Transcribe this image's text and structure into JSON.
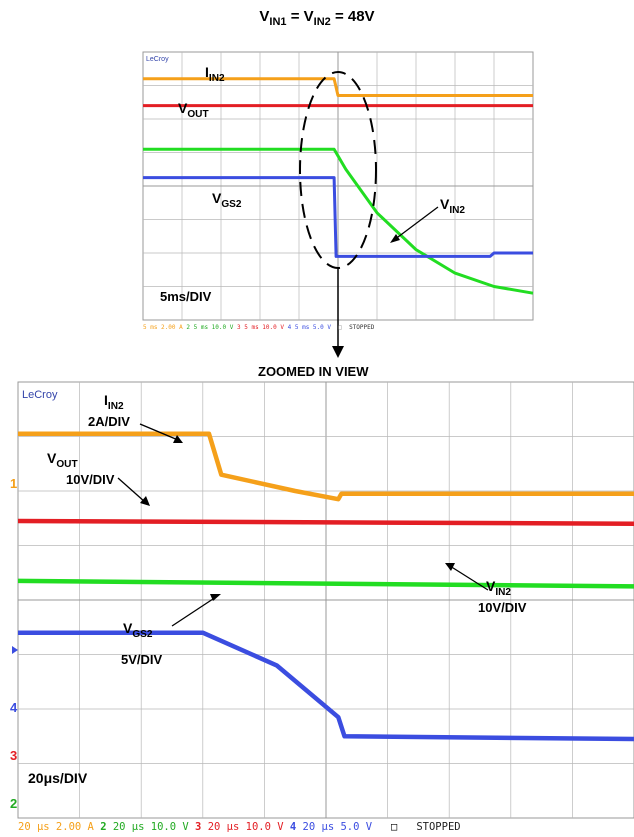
{
  "title": {
    "prefix": "V",
    "sub1": "IN1",
    "mid": " = V",
    "sub2": "IN2",
    "suffix": " = 48V"
  },
  "top_scope": {
    "brand": "LeCroy",
    "labels": {
      "iin2": {
        "main": "I",
        "sub": "IN2"
      },
      "vout": {
        "main": "V",
        "sub": "OUT"
      },
      "vgs2": {
        "main": "V",
        "sub": "GS2"
      },
      "vin2": {
        "main": "V",
        "sub": "IN2"
      }
    },
    "timebase": "5ms/DIV",
    "status": {
      "ch1": "5 ms 2.00 A",
      "ch2_num": "2",
      "ch2": "5 ms 10.0 V",
      "ch3_num": "3",
      "ch3": "5 ms 10.0 V",
      "ch4_num": "4",
      "ch4": "5 ms 5.0 V",
      "state": "STOPPED"
    }
  },
  "zoom_label": "ZOOMED IN VIEW",
  "bottom_scope": {
    "brand": "LeCroy",
    "labels": {
      "iin2": {
        "main": "I",
        "sub": "IN2",
        "scale": "2A/DIV"
      },
      "vout": {
        "main": "V",
        "sub": "OUT",
        "scale": "10V/DIV"
      },
      "vin2": {
        "main": "V",
        "sub": "IN2",
        "scale": "10V/DIV"
      },
      "vgs2": {
        "main": "V",
        "sub": "GS2",
        "scale": "5V/DIV"
      }
    },
    "timebase": "20μs/DIV",
    "status": {
      "ch1": "20 μs 2.00 A",
      "ch2_num": "2",
      "ch2": "20 μs 10.0 V",
      "ch3_num": "3",
      "ch3": "20 μs 10.0 V",
      "ch4_num": "4",
      "ch4": "20 μs 5.0 V",
      "state": "STOPPED"
    },
    "channel_markers": [
      "1",
      "4",
      "3",
      "2"
    ]
  },
  "colors": {
    "iin2": "#f5a01a",
    "vout": "#e31e24",
    "vin2": "#22dd22",
    "vgs2": "#3b4de0",
    "grid": "#b8b8b8"
  },
  "chart_data": [
    {
      "type": "line",
      "title": "",
      "xlabel": "",
      "ylabel": "",
      "grid": true,
      "series": [
        {
          "name": "I_IN2",
          "x": [
            0,
            4.9,
            5.0,
            10
          ],
          "y": [
            7.2,
            7.2,
            6.7,
            6.7
          ]
        },
        {
          "name": "V_OUT",
          "x": [
            0,
            10
          ],
          "y": [
            6.4,
            6.4
          ]
        },
        {
          "name": "V_IN2",
          "x": [
            0,
            4.9,
            5.2,
            6,
            7,
            8,
            9,
            10
          ],
          "y": [
            5.1,
            5.1,
            4.5,
            3.2,
            2.1,
            1.4,
            1.0,
            0.8
          ]
        },
        {
          "name": "V_GS2",
          "x": [
            0,
            4.9,
            4.95,
            8.9,
            9.0,
            10
          ],
          "y": [
            4.25,
            4.25,
            1.9,
            1.9,
            2.0,
            2.0
          ]
        }
      ]
    },
    {
      "type": "line",
      "title": "",
      "xlabel": "",
      "ylabel": "",
      "grid": true,
      "series": [
        {
          "name": "I_IN2",
          "x": [
            0,
            3.1,
            3.3,
            4.5,
            5.2,
            5.25,
            10
          ],
          "y": [
            7.05,
            7.05,
            6.3,
            6.0,
            5.85,
            5.95,
            5.95
          ]
        },
        {
          "name": "V_OUT",
          "x": [
            0,
            10
          ],
          "y": [
            5.45,
            5.4
          ]
        },
        {
          "name": "V_IN2",
          "x": [
            0,
            10
          ],
          "y": [
            4.35,
            4.25
          ]
        },
        {
          "name": "V_GS2",
          "x": [
            0,
            3.0,
            4.2,
            5.2,
            5.3,
            10
          ],
          "y": [
            3.4,
            3.4,
            2.8,
            1.85,
            1.5,
            1.45
          ]
        }
      ]
    }
  ]
}
